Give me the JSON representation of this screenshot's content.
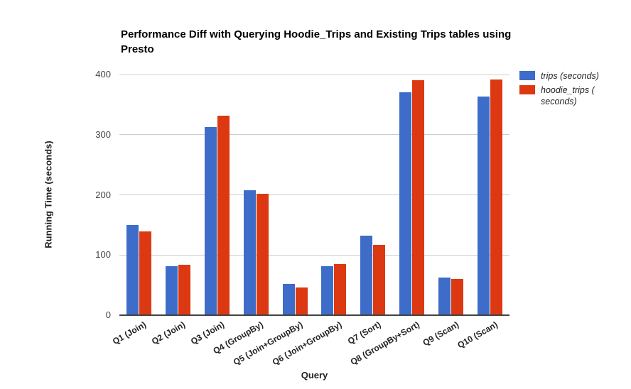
{
  "chart_data": {
    "type": "bar",
    "title": "Performance Diff with Querying Hoodie_Trips and Existing Trips tables using Presto",
    "xlabel": "Query",
    "ylabel": "Running Time (seconds)",
    "ylim": [
      0,
      400
    ],
    "yticks": [
      0,
      100,
      200,
      300,
      400
    ],
    "grid": true,
    "legend_position": "top-right",
    "categories": [
      "Q1 (Join)",
      "Q2 (Join)",
      "Q3 (Join)",
      "Q4 (GroupBy)",
      "Q5 (Join+GroupBy)",
      "Q6 (Join+GroupBy)",
      "Q7 (Sort)",
      "Q8 (GroupBy+Sort)",
      "Q9 (Scan)",
      "Q10 (Scan)"
    ],
    "series": [
      {
        "name": "trips (seconds)",
        "color": "#3D6CC9",
        "values": [
          150,
          82,
          313,
          208,
          52,
          82,
          132,
          371,
          62,
          363
        ]
      },
      {
        "name": "hoodie_trips ( seconds)",
        "color": "#DC3912",
        "values": [
          139,
          84,
          332,
          202,
          46,
          85,
          117,
          390,
          60,
          392
        ]
      }
    ],
    "colors": {
      "grid": "#cccccc",
      "axis": "#424242",
      "tick_text": "#444444",
      "label_text": "#222222",
      "title_text": "#000000"
    }
  }
}
